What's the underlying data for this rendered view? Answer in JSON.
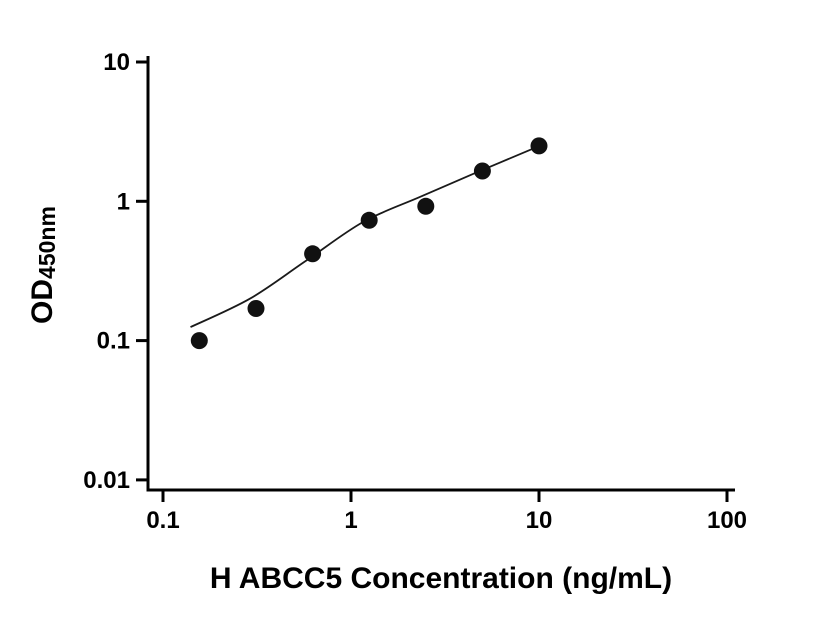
{
  "chart_data": {
    "type": "scatter",
    "title": "",
    "xlabel": "H ABCC5 Concentration (ng/mL)",
    "ylabel_main": "OD",
    "ylabel_sub": "450nm",
    "x_scale": "log",
    "y_scale": "log",
    "xlim": [
      0.1,
      100
    ],
    "ylim": [
      0.01,
      10
    ],
    "x_ticks": [
      0.1,
      1,
      10,
      100
    ],
    "x_tick_labels": [
      "0.1",
      "1",
      "10",
      "100"
    ],
    "y_ticks": [
      10,
      1,
      0.1,
      0.01
    ],
    "y_tick_labels": [
      "10",
      "1",
      "0.1",
      "0.01"
    ],
    "grid": false,
    "legend": false,
    "series": [
      {
        "name": "standard-curve-points",
        "marker": "filled-circle",
        "x": [
          0.156,
          0.3125,
          0.625,
          1.25,
          2.5,
          5,
          10
        ],
        "y": [
          0.1,
          0.17,
          0.42,
          0.73,
          0.92,
          1.65,
          2.5
        ]
      }
    ],
    "fit_curve": {
      "x": [
        0.14,
        0.29,
        0.57,
        1.16,
        2.35,
        4.7,
        9.8
      ],
      "y": [
        0.125,
        0.2,
        0.37,
        0.71,
        1.08,
        1.62,
        2.46
      ]
    },
    "colors": {
      "point": "#111111",
      "line": "#1a1a1a",
      "axis": "#000000",
      "background": "#ffffff"
    }
  }
}
